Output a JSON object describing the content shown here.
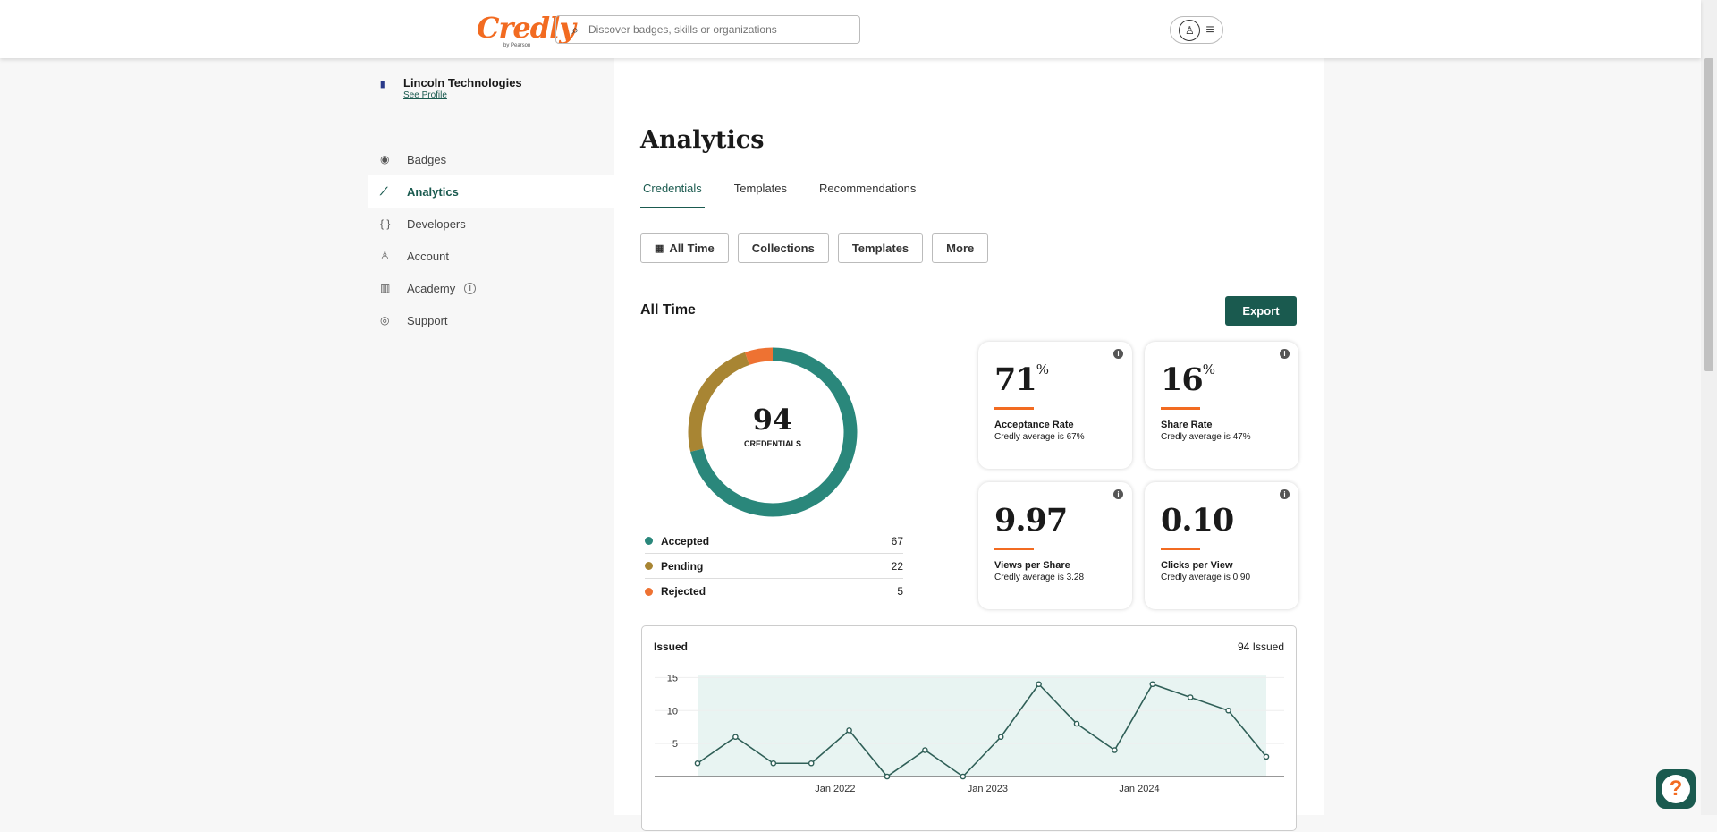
{
  "header": {
    "logo": "Credly",
    "logo_sub": "by Pearson",
    "search_placeholder": "Discover badges, skills or organizations"
  },
  "sidebar": {
    "org_name": "Lincoln Technologies",
    "see_profile": "See Profile",
    "items": [
      {
        "label": "Badges",
        "icon": "◉"
      },
      {
        "label": "Analytics",
        "icon": "⟋"
      },
      {
        "label": "Developers",
        "icon": "{ }"
      },
      {
        "label": "Account",
        "icon": "♙"
      },
      {
        "label": "Academy",
        "icon": "▥"
      },
      {
        "label": "Support",
        "icon": "◎"
      }
    ],
    "academy_info": "i"
  },
  "main": {
    "title": "Analytics",
    "tabs": [
      {
        "label": "Credentials"
      },
      {
        "label": "Templates"
      },
      {
        "label": "Recommendations"
      }
    ],
    "filters": {
      "all_time": "All Time",
      "collections": "Collections",
      "templates": "Templates",
      "more": "More"
    },
    "section_title": "All Time",
    "export": "Export",
    "donut": {
      "total": "94",
      "label": "CREDENTIALS"
    },
    "legend": [
      {
        "label": "Accepted",
        "value": 67,
        "color": "#2a877b"
      },
      {
        "label": "Pending",
        "value": 22,
        "color": "#a88533"
      },
      {
        "label": "Rejected",
        "value": 5,
        "color": "#ee7232"
      }
    ],
    "cards": [
      {
        "value": "71",
        "unit": "%",
        "title": "Acceptance Rate",
        "sub": "Credly average is 67%"
      },
      {
        "value": "16",
        "unit": "%",
        "title": "Share Rate",
        "sub": "Credly average is 47%"
      },
      {
        "value": "9.97",
        "unit": "",
        "title": "Views per Share",
        "sub": "Credly average is 3.28"
      },
      {
        "value": "0.10",
        "unit": "",
        "title": "Clicks per View",
        "sub": "Credly average is 0.90"
      }
    ]
  },
  "chart_data": {
    "type": "line",
    "title": "Issued",
    "summary": "94 Issued",
    "values": [
      2,
      6,
      2,
      2,
      7,
      0,
      4,
      0,
      6,
      14,
      8,
      4,
      14,
      12,
      10,
      3
    ],
    "ylim": [
      0,
      16
    ],
    "yticks": [
      5,
      10,
      15
    ],
    "xticks": [
      {
        "label": "Jan 2022",
        "index": 3.63
      },
      {
        "label": "Jan 2023",
        "index": 7.65
      },
      {
        "label": "Jan 2024",
        "index": 11.65
      }
    ],
    "line_color": "#2f5f57",
    "fill_color": "#e8f4f2"
  },
  "help": {
    "label": "?"
  }
}
